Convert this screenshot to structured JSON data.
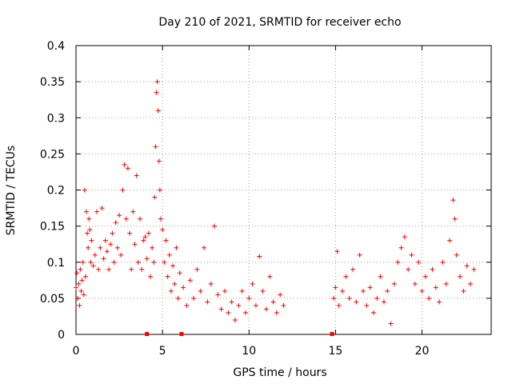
{
  "chart_data": {
    "type": "scatter",
    "title": "Day 210 of 2021, SRMTID for receiver echo",
    "xlabel": "GPS time / hours",
    "ylabel": "SRMTID / TECUs",
    "xlim": [
      0,
      24
    ],
    "ylim": [
      0,
      0.4
    ],
    "x_ticks": [
      0,
      5,
      10,
      15,
      20
    ],
    "x_tick_labels": [
      "0",
      "5",
      "10",
      "15",
      "20"
    ],
    "y_ticks": [
      0,
      0.05,
      0.1,
      0.15,
      0.2,
      0.25,
      0.3,
      0.35,
      0.4
    ],
    "y_tick_labels": [
      "0",
      "0.05",
      "0.1",
      "0.15",
      "0.2",
      "0.25",
      "0.3",
      "0.35",
      "0.4"
    ],
    "grid": true,
    "marker": "+",
    "color": "#ff0000",
    "zero_markers_x": [
      4.1,
      6.1,
      14.8
    ],
    "series": [
      {
        "name": "SRMTID",
        "points": [
          [
            0.0,
            0.065
          ],
          [
            0.05,
            0.085
          ],
          [
            0.1,
            0.05
          ],
          [
            0.15,
            0.07
          ],
          [
            0.2,
            0.04
          ],
          [
            0.25,
            0.09
          ],
          [
            0.3,
            0.06
          ],
          [
            0.35,
            0.075
          ],
          [
            0.4,
            0.1
          ],
          [
            0.45,
            0.055
          ],
          [
            0.5,
            0.2
          ],
          [
            0.55,
            0.08
          ],
          [
            0.6,
            0.17
          ],
          [
            0.65,
            0.14
          ],
          [
            0.7,
            0.12
          ],
          [
            0.75,
            0.16
          ],
          [
            0.8,
            0.145
          ],
          [
            0.85,
            0.1
          ],
          [
            0.9,
            0.13
          ],
          [
            1.0,
            0.095
          ],
          [
            1.1,
            0.11
          ],
          [
            1.2,
            0.17
          ],
          [
            1.3,
            0.09
          ],
          [
            1.4,
            0.12
          ],
          [
            1.5,
            0.175
          ],
          [
            1.6,
            0.105
          ],
          [
            1.7,
            0.13
          ],
          [
            1.8,
            0.115
          ],
          [
            1.9,
            0.09
          ],
          [
            2.0,
            0.125
          ],
          [
            2.1,
            0.14
          ],
          [
            2.2,
            0.1
          ],
          [
            2.3,
            0.155
          ],
          [
            2.4,
            0.12
          ],
          [
            2.5,
            0.165
          ],
          [
            2.6,
            0.11
          ],
          [
            2.7,
            0.2
          ],
          [
            2.8,
            0.235
          ],
          [
            2.9,
            0.16
          ],
          [
            3.0,
            0.23
          ],
          [
            3.1,
            0.14
          ],
          [
            3.2,
            0.09
          ],
          [
            3.3,
            0.17
          ],
          [
            3.4,
            0.125
          ],
          [
            3.5,
            0.22
          ],
          [
            3.6,
            0.1
          ],
          [
            3.7,
            0.16
          ],
          [
            3.8,
            0.09
          ],
          [
            3.9,
            0.13
          ],
          [
            4.0,
            0.135
          ],
          [
            4.1,
            0.105
          ],
          [
            4.2,
            0.14
          ],
          [
            4.3,
            0.08
          ],
          [
            4.4,
            0.12
          ],
          [
            4.5,
            0.1
          ],
          [
            4.55,
            0.19
          ],
          [
            4.6,
            0.26
          ],
          [
            4.65,
            0.335
          ],
          [
            4.7,
            0.35
          ],
          [
            4.75,
            0.31
          ],
          [
            4.8,
            0.24
          ],
          [
            4.85,
            0.2
          ],
          [
            4.9,
            0.16
          ],
          [
            5.0,
            0.145
          ],
          [
            5.1,
            0.1
          ],
          [
            5.2,
            0.13
          ],
          [
            5.3,
            0.08
          ],
          [
            5.4,
            0.11
          ],
          [
            5.5,
            0.06
          ],
          [
            5.6,
            0.095
          ],
          [
            5.7,
            0.07
          ],
          [
            5.8,
            0.12
          ],
          [
            5.9,
            0.05
          ],
          [
            6.0,
            0.085
          ],
          [
            6.2,
            0.065
          ],
          [
            6.4,
            0.04
          ],
          [
            6.6,
            0.075
          ],
          [
            6.8,
            0.05
          ],
          [
            7.0,
            0.09
          ],
          [
            7.2,
            0.06
          ],
          [
            7.4,
            0.12
          ],
          [
            7.6,
            0.045
          ],
          [
            7.8,
            0.07
          ],
          [
            8.0,
            0.15
          ],
          [
            8.2,
            0.055
          ],
          [
            8.4,
            0.035
          ],
          [
            8.6,
            0.06
          ],
          [
            8.8,
            0.03
          ],
          [
            9.0,
            0.045
          ],
          [
            9.2,
            0.02
          ],
          [
            9.4,
            0.04
          ],
          [
            9.6,
            0.06
          ],
          [
            9.8,
            0.03
          ],
          [
            10.0,
            0.05
          ],
          [
            10.2,
            0.07
          ],
          [
            10.4,
            0.04
          ],
          [
            10.6,
            0.108
          ],
          [
            10.8,
            0.06
          ],
          [
            11.0,
            0.035
          ],
          [
            11.2,
            0.08
          ],
          [
            11.4,
            0.045
          ],
          [
            11.6,
            0.03
          ],
          [
            11.8,
            0.055
          ],
          [
            12.0,
            0.04
          ],
          [
            14.9,
            0.05
          ],
          [
            15.0,
            0.065
          ],
          [
            15.1,
            0.115
          ],
          [
            15.2,
            0.04
          ],
          [
            15.4,
            0.06
          ],
          [
            15.6,
            0.08
          ],
          [
            15.8,
            0.05
          ],
          [
            16.0,
            0.09
          ],
          [
            16.2,
            0.045
          ],
          [
            16.4,
            0.11
          ],
          [
            16.6,
            0.06
          ],
          [
            16.8,
            0.04
          ],
          [
            17.0,
            0.065
          ],
          [
            17.2,
            0.03
          ],
          [
            17.4,
            0.05
          ],
          [
            17.6,
            0.08
          ],
          [
            17.8,
            0.045
          ],
          [
            18.0,
            0.06
          ],
          [
            18.2,
            0.015
          ],
          [
            18.4,
            0.07
          ],
          [
            18.6,
            0.1
          ],
          [
            18.8,
            0.12
          ],
          [
            19.0,
            0.135
          ],
          [
            19.2,
            0.09
          ],
          [
            19.4,
            0.11
          ],
          [
            19.6,
            0.07
          ],
          [
            19.8,
            0.1
          ],
          [
            20.0,
            0.06
          ],
          [
            20.2,
            0.08
          ],
          [
            20.4,
            0.05
          ],
          [
            20.6,
            0.09
          ],
          [
            20.8,
            0.065
          ],
          [
            21.0,
            0.045
          ],
          [
            21.2,
            0.1
          ],
          [
            21.4,
            0.07
          ],
          [
            21.6,
            0.13
          ],
          [
            21.8,
            0.186
          ],
          [
            21.9,
            0.16
          ],
          [
            22.0,
            0.11
          ],
          [
            22.2,
            0.08
          ],
          [
            22.4,
            0.06
          ],
          [
            22.6,
            0.095
          ],
          [
            22.8,
            0.07
          ],
          [
            23.0,
            0.09
          ]
        ]
      }
    ]
  }
}
